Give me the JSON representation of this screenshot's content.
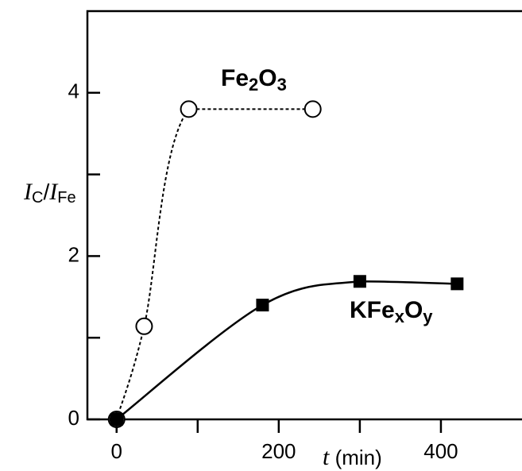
{
  "chart_data": {
    "type": "line",
    "xlabel": "t (min)",
    "ylabel": "IC/IFe",
    "xlim": [
      -36,
      500
    ],
    "xticks": [
      0,
      200,
      400
    ],
    "xminor_ticks": [
      100,
      300
    ],
    "ylim": [
      0,
      5
    ],
    "yticks": [
      0,
      2,
      4
    ],
    "yminor_ticks": [
      1,
      3
    ],
    "series": [
      {
        "name": "Fe2O3",
        "color": "#000000",
        "marker": "open-circle",
        "line": "dashed",
        "x": [
          0,
          34,
          89,
          242
        ],
        "values": [
          0,
          1.14,
          3.8,
          3.8
        ]
      },
      {
        "name": "KFexOy",
        "color": "#000000",
        "marker": "filled-square",
        "line": "solid",
        "x": [
          0,
          180,
          300,
          420
        ],
        "values": [
          0,
          1.4,
          1.69,
          1.66
        ]
      }
    ]
  }
}
